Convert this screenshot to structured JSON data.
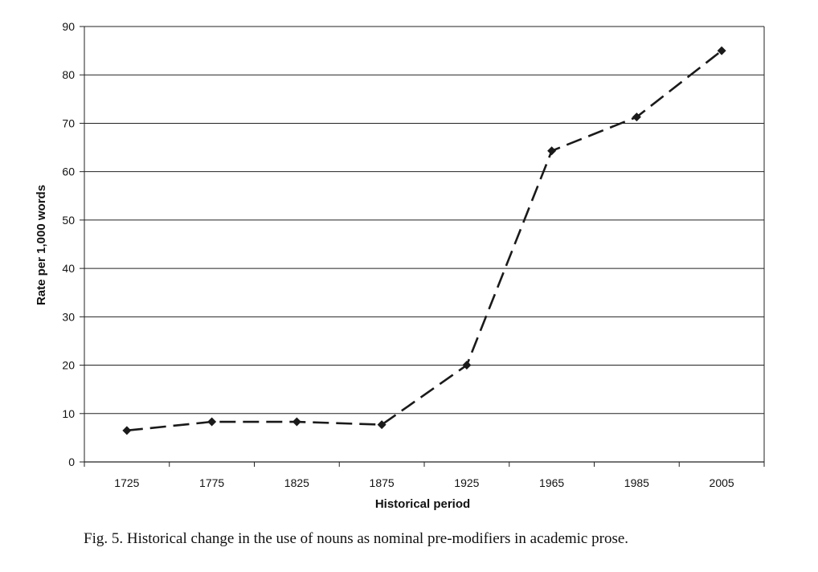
{
  "chart_data": {
    "type": "line",
    "title": "",
    "xlabel": "Historical period",
    "ylabel": "Rate per 1,000 words",
    "categories": [
      "1725",
      "1775",
      "1825",
      "1875",
      "1925",
      "1965",
      "1985",
      "2005"
    ],
    "series": [
      {
        "name": "Nouns as nominal pre-modifiers",
        "values": [
          6.5,
          8.3,
          8.3,
          7.7,
          20,
          64.3,
          71.3,
          85
        ]
      }
    ],
    "ylim": [
      0,
      90
    ],
    "yticks": [
      0,
      10,
      20,
      30,
      40,
      50,
      60,
      70,
      80,
      90
    ],
    "grid": "horizontal",
    "line_style": "dashed",
    "marker": "diamond",
    "colors": {
      "line": "#1a1a1a",
      "grid": "#222222",
      "marker": "#1a1a1a"
    }
  },
  "caption": "Fig. 5.  Historical change in the use of nouns as nominal pre-modifiers in academic prose."
}
